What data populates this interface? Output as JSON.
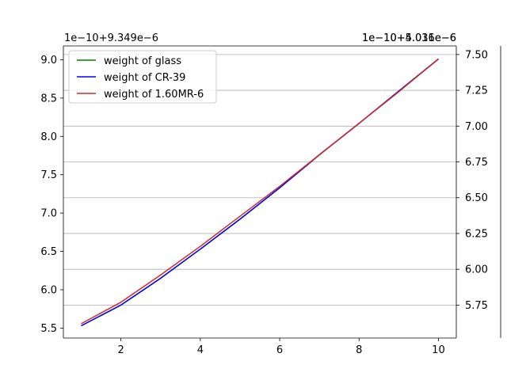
{
  "chart_data": {
    "type": "line",
    "x": [
      1,
      2,
      3,
      4,
      5,
      6,
      7,
      8,
      9,
      10
    ],
    "x_ticks": [
      "2",
      "4",
      "6",
      "8",
      "10"
    ],
    "xlim": [
      0.55,
      10.45
    ],
    "grid": "horizontal (from right axes)",
    "legend_position": "top-left",
    "axes": {
      "left": {
        "offset_label": "1e−10+9.349e−6",
        "ylim": [
          5.37,
          9.18
        ],
        "ticks": [
          "5.5",
          "6.0",
          "6.5",
          "7.0",
          "7.5",
          "8.0",
          "8.5",
          "9.0"
        ]
      },
      "right1": {
        "offset_label": "1e−10+5.031e−6",
        "ylim": [
          5.52,
          7.56
        ],
        "ticks": [
          "5.75",
          "6.00",
          "6.25",
          "6.50",
          "6.75",
          "7.00",
          "7.25",
          "7.50"
        ]
      },
      "right2": {
        "offset_label": "1e−10+4.016e−6",
        "ylim": [
          0,
          1
        ],
        "ticks": []
      }
    },
    "series": [
      {
        "name": "weight of glass",
        "color": "#008000",
        "axis": "left",
        "values": [
          5.53,
          5.8,
          6.15,
          6.53,
          6.92,
          7.33,
          7.76,
          8.17,
          8.59,
          9.01
        ]
      },
      {
        "name": "weight of CR-39",
        "color": "#0000ff",
        "axis": "left",
        "values": [
          5.53,
          5.8,
          6.15,
          6.53,
          6.92,
          7.33,
          7.76,
          8.17,
          8.59,
          9.01
        ]
      },
      {
        "name": "weight of 1.60MR-6",
        "color": "#d62728",
        "axis": "right1",
        "values": [
          5.62,
          5.77,
          5.96,
          6.16,
          6.37,
          6.58,
          6.8,
          7.02,
          7.24,
          7.47
        ]
      }
    ]
  }
}
